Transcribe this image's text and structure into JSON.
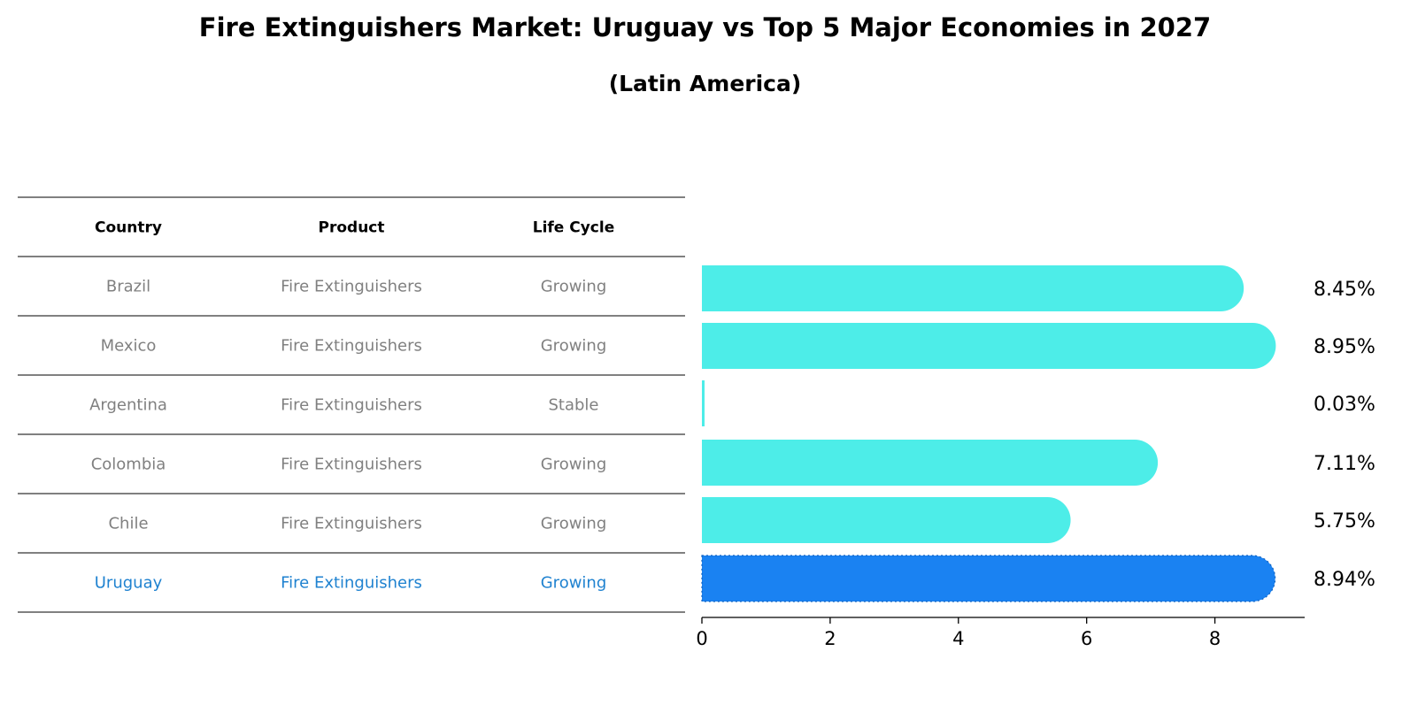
{
  "colors": {
    "bar": "#4DEDE8",
    "highlight": "#1A82F2",
    "muted_text": "#808080",
    "highlight_text": "#1F82D0",
    "header_text": "#000000"
  },
  "chart_data": {
    "type": "bar",
    "orientation": "horizontal",
    "title": "Fire Extinguishers Market: Uruguay vs Top 5 Major Economies in 2027",
    "subtitle": "(Latin America)",
    "categories": [
      "Brazil",
      "Mexico",
      "Argentina",
      "Colombia",
      "Chile",
      "Uruguay"
    ],
    "values": [
      8.45,
      8.95,
      0.03,
      7.11,
      5.75,
      8.94
    ],
    "value_labels": [
      "8.45%",
      "8.95%",
      "0.03%",
      "7.11%",
      "5.75%",
      "8.94%"
    ],
    "highlight": "Uruguay",
    "xlim": [
      0,
      9.4
    ],
    "xticks": [
      0,
      2,
      4,
      6,
      8
    ],
    "xtick_labels": [
      "0",
      "2",
      "4",
      "6",
      "8"
    ],
    "xlabel": "",
    "ylabel": "",
    "grid": false,
    "table": {
      "headers": [
        "Country",
        "Product",
        "Life Cycle"
      ],
      "rows": [
        [
          "Brazil",
          "Fire Extinguishers",
          "Growing"
        ],
        [
          "Mexico",
          "Fire Extinguishers",
          "Growing"
        ],
        [
          "Argentina",
          "Fire Extinguishers",
          "Stable"
        ],
        [
          "Colombia",
          "Fire Extinguishers",
          "Growing"
        ],
        [
          "Chile",
          "Fire Extinguishers",
          "Growing"
        ],
        [
          "Uruguay",
          "Fire Extinguishers",
          "Growing"
        ]
      ]
    }
  }
}
